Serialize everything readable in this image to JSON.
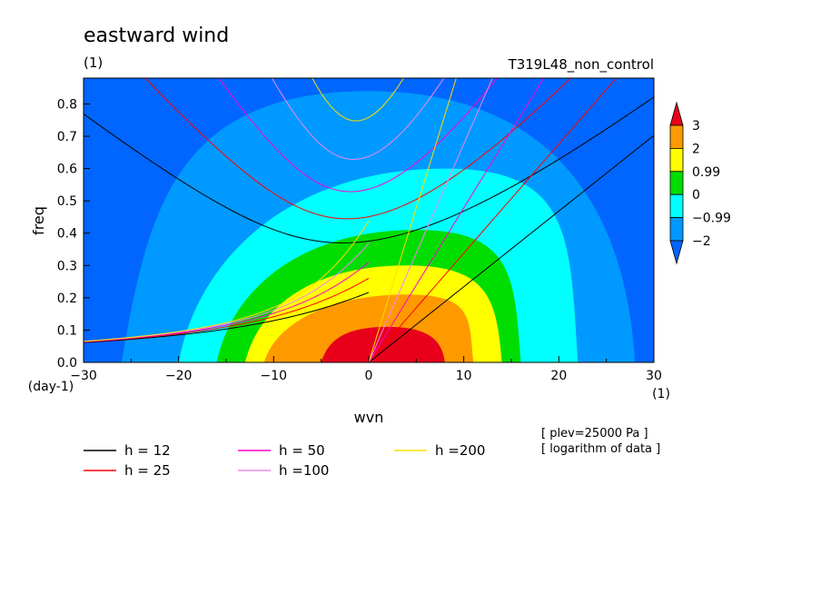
{
  "chart_data": {
    "type": "heatmap",
    "title": "eastward wind",
    "subtitle_left": "(1)",
    "subtitle_right": "T319L48_non_control",
    "xlabel": "wvn",
    "ylabel": "freq",
    "x_unit": "(1)",
    "y_unit": "(day-1)",
    "xlim": [
      -30,
      30
    ],
    "ylim": [
      0,
      0.88
    ],
    "x_ticks": [
      "−30",
      "−20",
      "−10",
      "0",
      "10",
      "20",
      "30"
    ],
    "x_tick_values": [
      -30,
      -20,
      -10,
      0,
      10,
      20,
      30
    ],
    "y_ticks": [
      "0.0",
      "0.1",
      "0.2",
      "0.3",
      "0.4",
      "0.5",
      "0.6",
      "0.7",
      "0.8"
    ],
    "y_tick_values": [
      0,
      0.1,
      0.2,
      0.3,
      0.4,
      0.5,
      0.6,
      0.7,
      0.8
    ],
    "colorbar": {
      "labels": [
        "3",
        "2",
        "0.99",
        "0",
        "−0.99",
        "−2"
      ],
      "colors": [
        "#e8001a",
        "#ff9900",
        "#ffff00",
        "#00dd00",
        "#00ffff",
        "#0099ff",
        "#0066ff"
      ]
    },
    "contour_levels": [
      {
        "color": "#0066ff",
        "region": "background"
      },
      {
        "color": "#0099ff",
        "peak_x": 0,
        "peak_y": 0.83,
        "xmin": -26,
        "xmax": 28,
        "ymax": 0.84
      },
      {
        "color": "#00ffff",
        "peak_x": 8,
        "peak_y": 0.59,
        "xmin": -20,
        "xmax": 22,
        "ymax": 0.6
      },
      {
        "color": "#00dd00",
        "peak_x": 5,
        "peak_y": 0.41,
        "xmin": -16,
        "xmax": 16,
        "ymax": 0.41
      },
      {
        "color": "#ffff00",
        "peak_x": 4,
        "peak_y": 0.3,
        "xmin": -13,
        "xmax": 14,
        "ymax": 0.3
      },
      {
        "color": "#ff9900",
        "peak_x": 4,
        "peak_y": 0.21,
        "xmin": -11,
        "xmax": 11,
        "ymax": 0.21
      },
      {
        "color": "#e8001a",
        "peak_x": 2,
        "peak_y": 0.11,
        "xmin": -5,
        "xmax": 8,
        "ymax": 0.11
      }
    ],
    "dispersion_curves": [
      {
        "name": "h = 12",
        "color": "#000000",
        "equivalent_depth": 12
      },
      {
        "name": "h = 25",
        "color": "#ff0000",
        "equivalent_depth": 25
      },
      {
        "name": "h = 50",
        "color": "#ff00cc",
        "equivalent_depth": 50
      },
      {
        "name": "h =100",
        "color": "#ee88ee",
        "equivalent_depth": 100
      },
      {
        "name": "h =200",
        "color": "#ffdd00",
        "equivalent_depth": 200
      }
    ],
    "annotations": [
      "[ plev=25000 Pa ]",
      "[ logarithm of data ]"
    ]
  }
}
